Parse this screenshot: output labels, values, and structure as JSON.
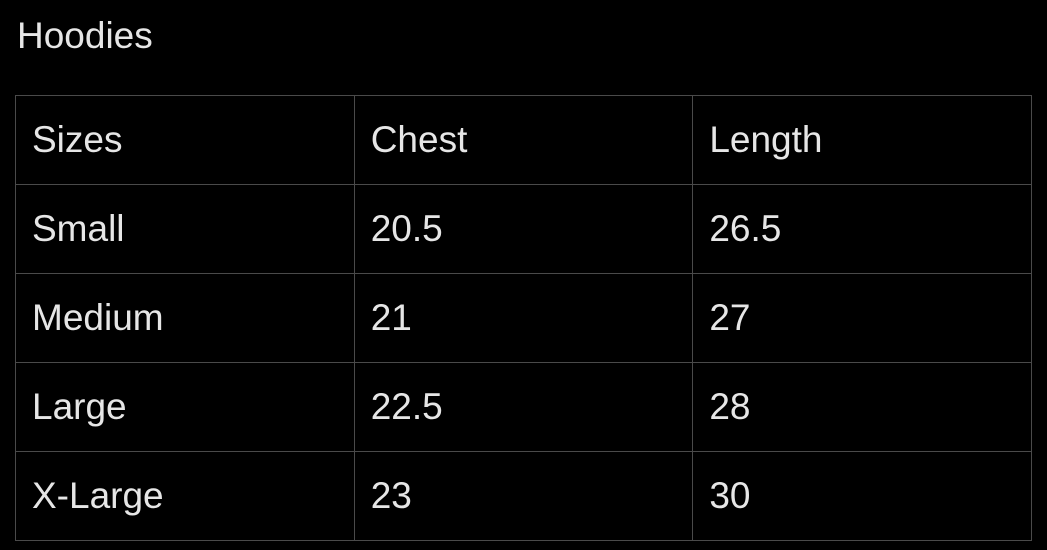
{
  "title": "Hoodies",
  "table": {
    "headers": [
      "Sizes",
      "Chest",
      "Length"
    ],
    "rows": [
      [
        "Small",
        "20.5",
        "26.5"
      ],
      [
        "Medium",
        "21",
        "27"
      ],
      [
        "Large",
        "22.5",
        "28"
      ],
      [
        "X-Large",
        "23",
        "30"
      ]
    ]
  }
}
